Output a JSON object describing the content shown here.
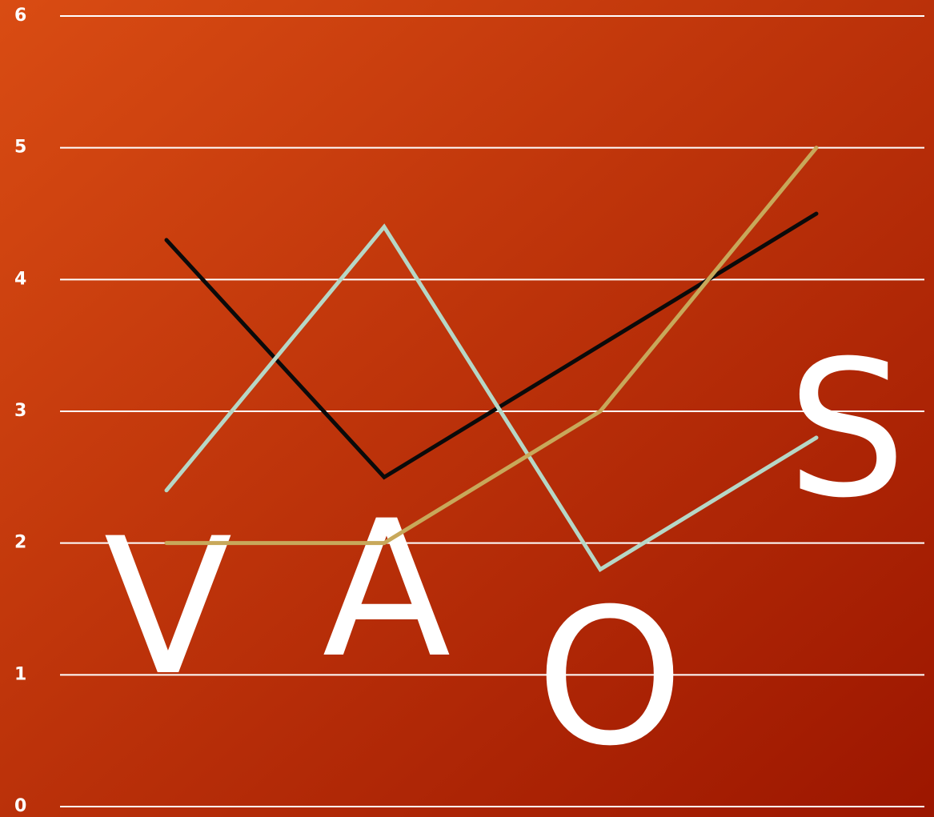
{
  "chart_data": {
    "type": "line",
    "categories": [
      "V",
      "A",
      "O",
      "S"
    ],
    "series": [
      {
        "color": "#0a0a0a",
        "values": [
          4.3,
          2.5,
          3.5,
          4.5
        ]
      },
      {
        "color": "#b6d7c6",
        "values": [
          2.4,
          4.4,
          1.8,
          2.8
        ]
      },
      {
        "color": "#c8a85a",
        "values": [
          2,
          2,
          3,
          5
        ]
      }
    ],
    "ylim": [
      0,
      6
    ],
    "yticks": [
      0,
      1,
      2,
      3,
      4,
      5,
      6
    ],
    "grid": true
  }
}
